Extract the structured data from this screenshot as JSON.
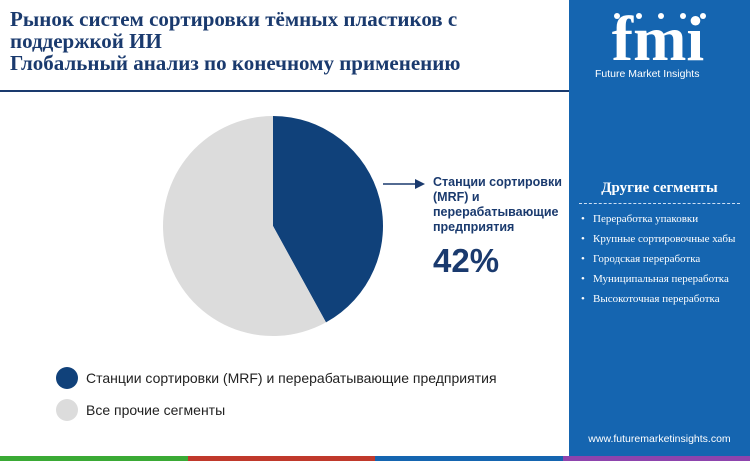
{
  "title": {
    "line1": "Рынок систем сортировки тёмных пластиков с",
    "line2": "поддержкой ИИ",
    "line3": "Глобальный анализ по конечному применению"
  },
  "chart_data": {
    "type": "pie",
    "slices": [
      {
        "label": "Станции сортировки (MRF) и перерабатывающие предприятия",
        "value": 42,
        "color": "#10417a"
      },
      {
        "label": "Все прочие сегменты",
        "value": 58,
        "color": "#dcdcdc"
      }
    ],
    "callout": {
      "label": "Станции сортировки (MRF) и перерабатывающие предприятия",
      "value": "42%"
    },
    "legend_position": "bottom-left"
  },
  "sidebar": {
    "logo_text": "fmi",
    "tagline": "Future Market Insights",
    "title": "Другие сегменты",
    "items": [
      "Переработка упаковки",
      "Крупные сортировочные хабы",
      "Городская переработка",
      "Муниципальная переработка",
      "Высокоточная переработка"
    ],
    "url": "www.futuremarketinsights.com",
    "background": "#1565b0"
  },
  "bottom_bar_colors": [
    "#3aaa35",
    "#c0392b",
    "#1565b0",
    "#8e44ad"
  ]
}
